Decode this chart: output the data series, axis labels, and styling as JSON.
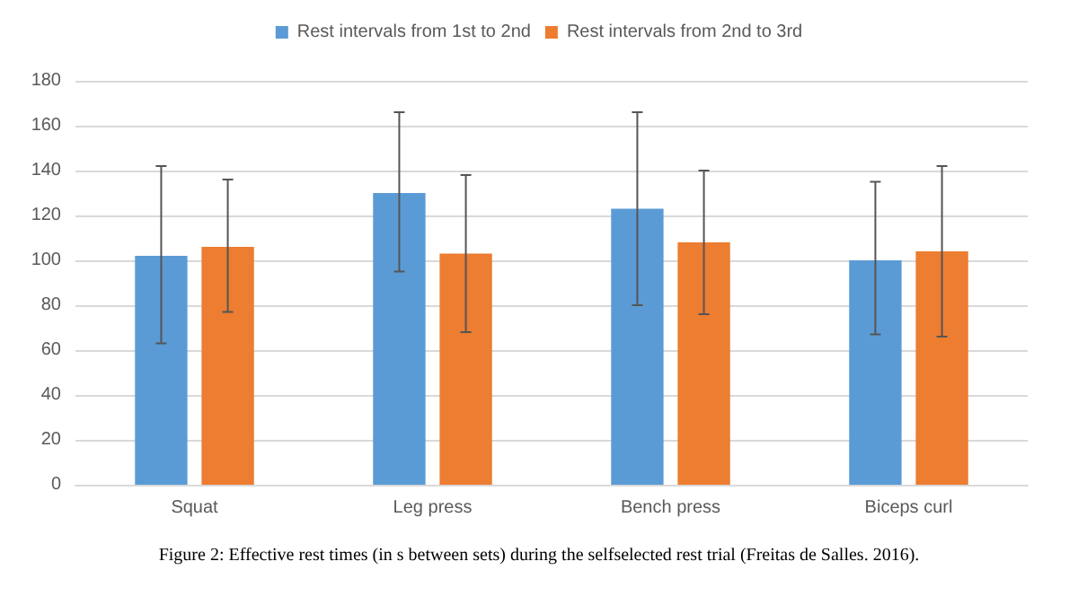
{
  "chart_data": {
    "type": "bar",
    "categories": [
      "Squat",
      "Leg press",
      "Bench press",
      "Biceps curl"
    ],
    "series": [
      {
        "name": "Rest intervals from 1st to 2nd",
        "color": "#5b9bd5",
        "values": [
          102,
          130,
          123,
          100
        ],
        "errors": [
          [
            63,
            142
          ],
          [
            95,
            166
          ],
          [
            80,
            166
          ],
          [
            67,
            135
          ]
        ]
      },
      {
        "name": "Rest intervals from 2nd to 3rd",
        "color": "#ed7d31",
        "values": [
          106,
          103,
          108,
          104
        ],
        "errors": [
          [
            77,
            136
          ],
          [
            68,
            138
          ],
          [
            76,
            140
          ],
          [
            66,
            142
          ]
        ]
      }
    ],
    "ylim": [
      0,
      180
    ],
    "yticks": [
      0,
      20,
      40,
      60,
      80,
      100,
      120,
      140,
      160,
      180
    ],
    "grid": "y",
    "legend": "top",
    "annotations": [
      "Figure 2: Effective rest times (in s between sets) during the selfselected rest trial (Freitas de Salles. 2016)."
    ]
  }
}
